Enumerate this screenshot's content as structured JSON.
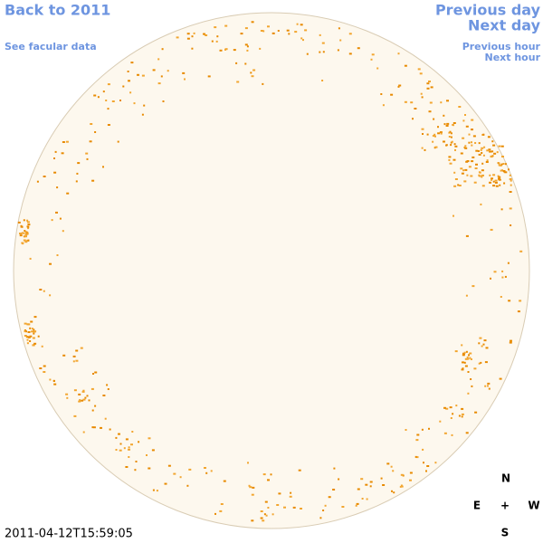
{
  "nav": {
    "back": "Back to 2011",
    "facular": "See facular data",
    "previous_day": "Previous day",
    "next_day": "Next day",
    "previous_hour": "Previous hour",
    "next_hour": "Next hour"
  },
  "timestamp": "2011-04-12T15:59:05",
  "compass": {
    "north": "N",
    "east": "E",
    "center": "+",
    "west": "W",
    "south": "S"
  }
}
